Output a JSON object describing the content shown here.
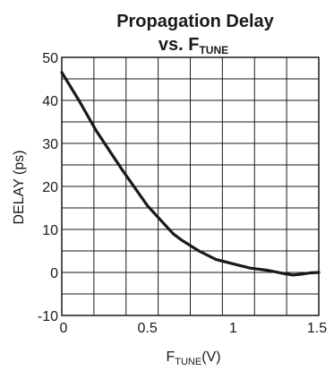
{
  "chart_data": {
    "type": "line",
    "title": {
      "line1": "Propagation Delay",
      "line2_prefix": "vs. F",
      "line2_sub": "TUNE"
    },
    "xlabel": {
      "main": "F",
      "sub": "TUNE",
      "suffix": "(V)"
    },
    "ylabel": "DELAY (ps)",
    "xlim": [
      0,
      1.5
    ],
    "ylim": [
      -10,
      50
    ],
    "x_ticks": [
      0,
      0.5,
      1,
      1.5
    ],
    "x_tick_labels": [
      "0",
      "0.5",
      "1",
      "1.5"
    ],
    "y_ticks": [
      -10,
      0,
      10,
      20,
      30,
      40,
      50
    ],
    "y_tick_labels": [
      "-10",
      "0",
      "10",
      "20",
      "30",
      "40",
      "50"
    ],
    "x_minor_step": 0.1875,
    "y_minor_step": 5,
    "grid": true,
    "series": [
      {
        "x": [
          0,
          0.1,
          0.2,
          0.35,
          0.5,
          0.65,
          0.7,
          0.8,
          0.9,
          1.0,
          1.1,
          1.2,
          1.3,
          1.35,
          1.4,
          1.45,
          1.5
        ],
        "y": [
          46.5,
          40,
          33,
          24,
          15.5,
          9,
          7.5,
          5,
          3,
          2,
          1,
          0.5,
          -0.3,
          -0.6,
          -0.4,
          -0.1,
          0
        ],
        "color": "#1a1a1a"
      }
    ]
  }
}
